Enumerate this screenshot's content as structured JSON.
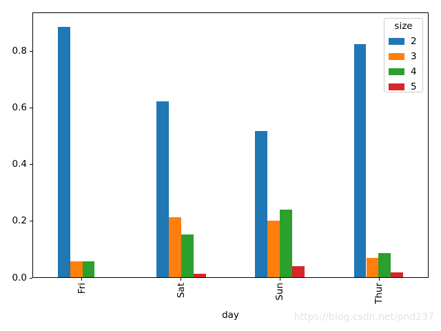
{
  "watermark": {
    "text": "https://blog.csdn.net/pnd237",
    "color": "#e3e3e3"
  },
  "chart_data": {
    "type": "bar",
    "title": "",
    "xlabel": "day",
    "ylabel": "",
    "categories": [
      "Fri",
      "Sat",
      "Sun",
      "Thur"
    ],
    "series": [
      {
        "name": "2",
        "color": "#1f77b4",
        "values": [
          0.889,
          0.624,
          0.52,
          0.828
        ]
      },
      {
        "name": "3",
        "color": "#ff7f0e",
        "values": [
          0.056,
          0.212,
          0.2,
          0.069
        ]
      },
      {
        "name": "4",
        "color": "#2ca02c",
        "values": [
          0.056,
          0.153,
          0.24,
          0.086
        ]
      },
      {
        "name": "5",
        "color": "#d62728",
        "values": [
          0.0,
          0.012,
          0.04,
          0.017
        ]
      }
    ],
    "legend": {
      "title": "size",
      "position": "upper right"
    },
    "ylim": [
      0,
      0.9375
    ],
    "y_ticks": [
      {
        "value": 0.0,
        "label": "0.0"
      },
      {
        "value": 0.2,
        "label": "0.2"
      },
      {
        "value": 0.4,
        "label": "0.4"
      },
      {
        "value": 0.6,
        "label": "0.6"
      },
      {
        "value": 0.8,
        "label": "0.8"
      }
    ],
    "grid": false,
    "bar_group_fraction": 0.5
  }
}
